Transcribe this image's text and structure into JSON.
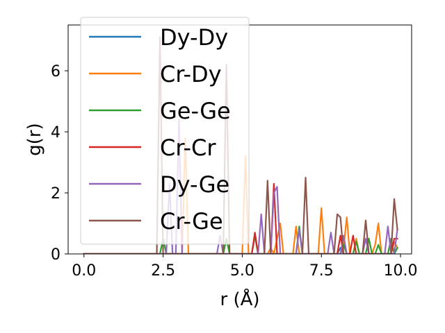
{
  "chart_data": {
    "type": "line",
    "title": "",
    "xlabel": "r (Å)",
    "ylabel": "g(r)",
    "xlim": [
      -0.5,
      10.35
    ],
    "ylim": [
      0,
      7.5
    ],
    "xticks": [
      0.0,
      2.5,
      5.0,
      7.5,
      10.0
    ],
    "xtick_labels": [
      "0.0",
      "2.5",
      "5.0",
      "7.5",
      "10.0"
    ],
    "yticks": [
      0,
      2,
      4,
      6
    ],
    "ytick_labels": [
      "0",
      "2",
      "4",
      "6"
    ],
    "grid": false,
    "legend_position": "upper-left",
    "x": [
      0.0,
      0.1,
      0.2,
      0.3,
      0.4,
      0.5,
      0.6,
      0.7,
      0.8,
      0.9,
      1.0,
      1.1,
      1.2,
      1.3,
      1.4,
      1.5,
      1.6,
      1.7,
      1.8,
      1.9,
      2.0,
      2.1,
      2.2,
      2.3,
      2.4,
      2.5,
      2.6,
      2.7,
      2.8,
      2.9,
      3.0,
      3.1,
      3.2,
      3.3,
      3.4,
      3.5,
      3.6,
      3.7,
      3.8,
      3.9,
      4.0,
      4.1,
      4.2,
      4.3,
      4.4,
      4.5,
      4.6,
      4.7,
      4.8,
      4.9,
      5.0,
      5.1,
      5.2,
      5.3,
      5.4,
      5.5,
      5.6,
      5.7,
      5.8,
      5.9,
      6.0,
      6.1,
      6.2,
      6.3,
      6.4,
      6.5,
      6.6,
      6.7,
      6.8,
      6.9,
      7.0,
      7.1,
      7.2,
      7.3,
      7.4,
      7.5,
      7.6,
      7.7,
      7.8,
      7.9,
      8.0,
      8.1,
      8.2,
      8.3,
      8.4,
      8.5,
      8.6,
      8.7,
      8.8,
      8.9,
      9.0,
      9.1,
      9.2,
      9.3,
      9.4,
      9.5,
      9.6,
      9.7,
      9.8,
      9.9
    ],
    "series": [
      {
        "name": "Dy-Dy",
        "color": "#1f77b4",
        "values": [
          0,
          0,
          0,
          0,
          0,
          0,
          0,
          0,
          0,
          0,
          0,
          0,
          0,
          0,
          0,
          0,
          0,
          0,
          0,
          0,
          0,
          0,
          0,
          0,
          0,
          0,
          0,
          0,
          0,
          0,
          0,
          0,
          0,
          0,
          0,
          0,
          0,
          0,
          0,
          0,
          0,
          0,
          0,
          0,
          0,
          0,
          0,
          0,
          0,
          0,
          0,
          0,
          0,
          0,
          0,
          0,
          0,
          0,
          0,
          0,
          0,
          0,
          0,
          0,
          0,
          0,
          0,
          0,
          0,
          0,
          0,
          0,
          0,
          0,
          0,
          0,
          0,
          0,
          0,
          0,
          0,
          0.2,
          0,
          0,
          0,
          0,
          0,
          0,
          0,
          0,
          0,
          0,
          0,
          0,
          0,
          0,
          0,
          0,
          0,
          0.2
        ]
      },
      {
        "name": "Cr-Dy",
        "color": "#ff7f0e",
        "values": [
          0,
          0,
          0,
          0,
          0,
          0,
          0,
          0,
          0,
          0,
          0,
          0,
          0,
          0,
          0,
          0,
          0,
          0,
          0,
          0,
          0,
          0,
          0,
          0,
          0,
          0,
          0,
          0,
          0,
          0,
          0,
          0,
          3.8,
          0,
          0,
          0,
          0,
          0,
          0,
          0,
          0,
          0,
          0,
          0,
          0,
          0,
          0,
          0,
          0,
          0,
          0,
          3.2,
          0,
          0,
          0.6,
          0,
          0,
          0,
          0,
          0.2,
          0,
          0.5,
          1.0,
          0,
          0,
          0,
          0,
          0.9,
          0,
          0,
          0,
          0,
          0,
          0,
          0,
          1.5,
          0,
          0,
          0,
          0,
          0,
          0,
          0.2,
          1.2,
          0,
          0,
          0.5,
          0,
          0,
          0,
          0,
          0,
          0.3,
          1.0,
          0,
          0,
          0,
          0,
          0.4,
          0.2
        ]
      },
      {
        "name": "Ge-Ge",
        "color": "#2ca02c",
        "values": [
          0,
          0,
          0,
          0,
          0,
          0,
          0,
          0,
          0,
          0,
          0,
          0,
          0,
          0,
          0,
          0,
          0,
          0,
          0,
          0,
          0,
          0,
          0,
          0,
          0,
          0.5,
          0,
          0,
          0,
          0,
          0,
          0,
          0,
          0,
          0,
          0,
          0,
          0,
          0,
          0,
          0,
          0,
          0,
          0,
          0,
          0.5,
          0,
          0,
          0,
          0,
          0,
          0,
          0,
          0,
          0.6,
          0,
          0,
          0,
          0,
          0,
          0,
          0,
          0,
          0,
          0,
          0,
          0,
          0,
          0.9,
          0,
          0,
          0,
          0,
          0,
          0,
          0,
          0,
          0,
          0,
          0,
          0,
          0,
          0.3,
          0,
          0,
          0,
          0.4,
          0,
          0,
          0,
          0.5,
          0,
          0,
          0.3,
          0,
          0,
          0,
          0.5,
          0,
          0.2
        ]
      },
      {
        "name": "Cr-Cr",
        "color": "#d62728",
        "values": [
          0,
          0,
          0,
          0,
          0,
          0,
          0,
          0,
          0,
          0,
          0,
          0,
          0,
          0,
          0,
          0,
          0,
          0,
          0,
          0,
          0,
          0,
          0,
          0,
          0,
          0,
          0,
          0,
          0,
          0,
          0,
          0,
          0,
          0,
          0,
          0,
          0,
          0,
          0,
          0,
          0,
          0,
          0,
          0,
          0,
          0,
          0,
          0,
          0,
          0,
          0,
          0,
          0,
          0,
          0.7,
          0,
          0,
          0,
          0,
          0,
          2.3,
          0,
          0,
          0,
          0,
          0,
          0,
          0,
          0,
          0,
          0,
          0,
          0,
          0,
          0,
          0,
          0,
          0,
          0,
          0,
          0,
          0.6,
          0,
          0,
          0,
          0.6,
          0,
          0,
          0,
          0,
          0,
          0,
          0,
          0,
          0,
          0,
          0,
          0,
          0.5,
          0.5
        ]
      },
      {
        "name": "Dy-Ge",
        "color": "#9467bd",
        "values": [
          0,
          0,
          0,
          0,
          0,
          0,
          0,
          0,
          0,
          0,
          0,
          0,
          0,
          0,
          0,
          0,
          0,
          0,
          0,
          0,
          0,
          0,
          0,
          0,
          0,
          0,
          0,
          2.3,
          0,
          0,
          4.4,
          0,
          0,
          0,
          0,
          0,
          0,
          0,
          0,
          0,
          0,
          0,
          0,
          0.6,
          0,
          0,
          0,
          0,
          0,
          0,
          0,
          0,
          0,
          0,
          0,
          0,
          1.3,
          0,
          0,
          0,
          2.0,
          2.2,
          0,
          0,
          0,
          0,
          0,
          0,
          0.8,
          0,
          0,
          0,
          0,
          0,
          0,
          0,
          0,
          0,
          0.7,
          0,
          0,
          0,
          0.6,
          0,
          0,
          0,
          0,
          0,
          0,
          0.5,
          0,
          0,
          0,
          0,
          0,
          0,
          0.9,
          0,
          0,
          0.8
        ]
      },
      {
        "name": "Cr-Ge",
        "color": "#8c564b",
        "values": [
          0,
          0,
          0,
          0,
          0,
          0,
          0,
          0,
          0,
          0,
          0,
          0,
          0,
          0,
          0,
          0,
          0,
          0,
          0,
          0,
          0,
          0,
          0,
          0,
          7.1,
          0,
          0,
          0,
          0,
          0,
          0,
          0,
          0,
          0,
          0,
          0,
          0,
          0,
          0,
          0,
          0,
          0,
          0,
          0,
          0,
          6.2,
          0,
          0,
          0,
          0,
          0,
          0,
          0,
          0,
          0,
          0,
          0,
          0,
          2.4,
          0,
          0,
          0,
          0,
          0,
          0,
          0,
          0,
          0,
          0,
          0,
          2.5,
          0,
          0,
          0,
          0,
          0,
          0,
          0,
          0,
          0,
          1.3,
          1.2,
          0,
          0,
          0,
          0,
          0,
          0,
          0,
          1.1,
          0,
          0,
          0,
          0,
          0,
          0,
          0,
          0,
          1.8,
          0.8
        ]
      }
    ]
  }
}
